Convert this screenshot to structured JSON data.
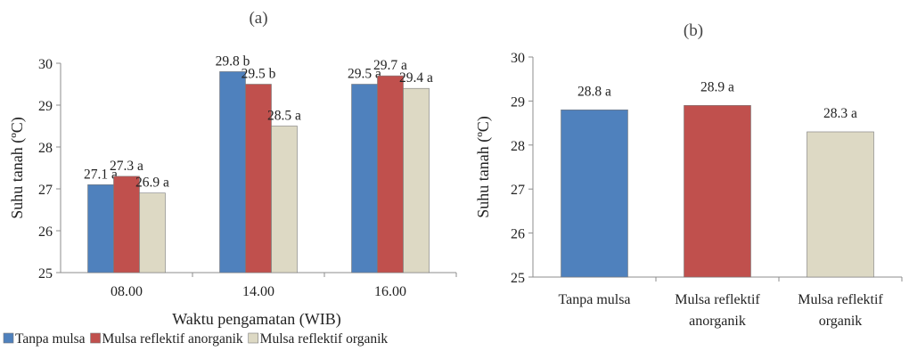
{
  "chart_data": [
    {
      "type": "bar",
      "title": "(a)",
      "xlabel": "Waktu pengamatan (WIB)",
      "ylabel": "Suhu tanah (ºC)",
      "ylim": [
        25,
        30
      ],
      "yticks": [
        "25",
        "26",
        "27",
        "28",
        "29",
        "30"
      ],
      "categories": [
        "08.00",
        "14.00",
        "16.00"
      ],
      "series": [
        {
          "name": "Tanpa mulsa",
          "color": "#4f81bd",
          "values": [
            27.1,
            29.8,
            29.5
          ],
          "labels": [
            "27.1 a",
            "29.8 b",
            "29.5 a"
          ]
        },
        {
          "name": "Mulsa reflektif anorganik",
          "color": "#c0504d",
          "values": [
            27.3,
            29.5,
            29.7
          ],
          "labels": [
            "27.3 a",
            "29.5 b",
            "29.7 a"
          ]
        },
        {
          "name": "Mulsa reflektif organik",
          "color": "#ddd9c4",
          "values": [
            26.9,
            28.5,
            29.4
          ],
          "labels": [
            "26.9 a",
            "28.5 a",
            "29.4 a"
          ]
        }
      ],
      "legend": "bottom-left",
      "grid": false
    },
    {
      "type": "bar",
      "title": "(b)",
      "xlabel": "",
      "ylabel": "Suhu tanah (ºC)",
      "ylim": [
        25,
        30
      ],
      "yticks": [
        "25",
        "26",
        "27",
        "28",
        "29",
        "30"
      ],
      "categories": [
        [
          "Tanpa mulsa"
        ],
        [
          "Mulsa reflektif",
          "anorganik"
        ],
        [
          "Mulsa reflektif",
          "organik"
        ]
      ],
      "values": [
        28.8,
        28.9,
        28.3
      ],
      "labels": [
        "28.8 a",
        "28.9 a",
        "28.3 a"
      ],
      "colors": [
        "#4f81bd",
        "#c0504d",
        "#ddd9c4"
      ],
      "grid": false
    }
  ]
}
